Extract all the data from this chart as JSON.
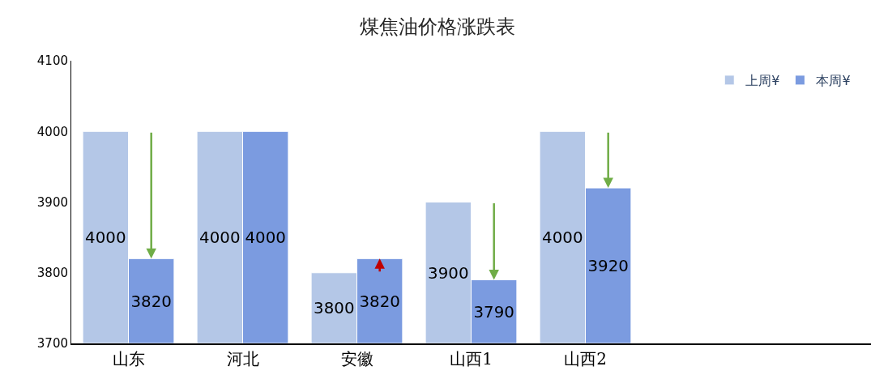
{
  "chart_data": {
    "type": "bar",
    "title": "煤焦油价格涨跌表",
    "categories": [
      "山东",
      "河北",
      "安徽",
      "山西1",
      "山西2",
      null,
      null
    ],
    "series": [
      {
        "name": "上周¥",
        "color": "#b4c7e7",
        "values": [
          4000,
          4000,
          3800,
          3900,
          4000,
          null,
          null
        ]
      },
      {
        "name": "本周¥",
        "color": "#7b9be0",
        "values": [
          3820,
          4000,
          3820,
          3790,
          3920,
          null,
          null
        ]
      }
    ],
    "ylim": [
      3700,
      4100
    ],
    "yticks": [
      3700,
      3800,
      3900,
      4000,
      4100
    ],
    "legend": "top right",
    "data_labels": true
  }
}
